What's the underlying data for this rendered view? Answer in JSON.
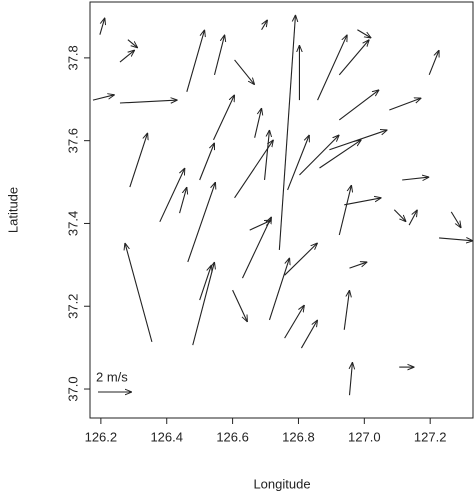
{
  "chart_data": {
    "type": "quiver",
    "x_label": "Longitude",
    "y_label": "Latitude",
    "scale_label": "2 m/s",
    "xlim": [
      126.167,
      127.33
    ],
    "ylim": [
      36.93,
      37.935
    ],
    "xticks": [
      126.2,
      126.4,
      126.6,
      126.8,
      {
        "value": 127,
        "label": "127.0"
      },
      127.2
    ],
    "yticks": [
      {
        "value": 37,
        "label": "37.0"
      },
      37.2,
      37.4,
      37.6,
      37.8
    ],
    "color": "#222222",
    "x": [
      126.355,
      126.288,
      126.379,
      126.258,
      126.176,
      126.464,
      126.479,
      126.5,
      126.439,
      126.5,
      126.461,
      126.606,
      126.742,
      126.606,
      126.63,
      126.6,
      126.712,
      126.758,
      126.809,
      126.758,
      126.767,
      126.803,
      126.864,
      126.894,
      126.939,
      126.924,
      126.939,
      126.955,
      126.955,
      127.106,
      127.091,
      127.136,
      127.115,
      127.076,
      127.197,
      127.264,
      127.227,
      126.858,
      126.924,
      126.979,
      126.688,
      126.197,
      126.667,
      126.545,
      126.803,
      126.652,
      126.282,
      126.258,
      126.697,
      126.924,
      126.542
    ],
    "y": [
      37.114,
      37.488,
      37.404,
      37.691,
      37.698,
      37.307,
      37.106,
      37.215,
      37.425,
      37.505,
      37.718,
      37.795,
      37.336,
      37.462,
      37.268,
      37.239,
      37.167,
      37.123,
      37.099,
      37.275,
      37.481,
      37.517,
      37.534,
      37.578,
      37.445,
      37.372,
      37.143,
      36.985,
      37.292,
      37.053,
      37.433,
      37.396,
      37.505,
      37.674,
      37.759,
      37.428,
      37.365,
      37.698,
      37.759,
      37.868,
      37.868,
      37.856,
      37.607,
      37.759,
      37.698,
      37.384,
      37.844,
      37.79,
      37.505,
      37.65,
      37.602
    ],
    "x_end": [
      126.273,
      126.342,
      126.455,
      126.433,
      126.242,
      126.548,
      126.545,
      126.536,
      126.461,
      126.545,
      126.515,
      126.667,
      126.791,
      126.724,
      126.718,
      126.645,
      126.773,
      126.818,
      126.858,
      126.858,
      126.833,
      126.924,
      126.991,
      127.07,
      127.052,
      126.961,
      126.955,
      126.964,
      127.009,
      127.152,
      127.127,
      127.161,
      127.197,
      127.173,
      127.227,
      127.294,
      127.33,
      126.948,
      127.015,
      127.021,
      126.706,
      126.212,
      126.688,
      126.576,
      126.803,
      126.718,
      126.312,
      126.303,
      126.712,
      127.045,
      126.606
    ],
    "y_end": [
      37.353,
      37.619,
      37.534,
      37.698,
      37.711,
      37.5,
      37.307,
      37.3,
      37.488,
      37.595,
      37.868,
      37.735,
      37.904,
      37.602,
      37.416,
      37.162,
      37.317,
      37.203,
      37.167,
      37.353,
      37.614,
      37.614,
      37.602,
      37.626,
      37.462,
      37.493,
      37.239,
      37.065,
      37.307,
      37.053,
      37.404,
      37.433,
      37.512,
      37.703,
      37.819,
      37.389,
      37.358,
      37.856,
      37.844,
      37.848,
      37.892,
      37.897,
      37.679,
      37.856,
      37.831,
      37.408,
      37.824,
      37.819,
      37.626,
      37.723,
      37.711
    ]
  }
}
